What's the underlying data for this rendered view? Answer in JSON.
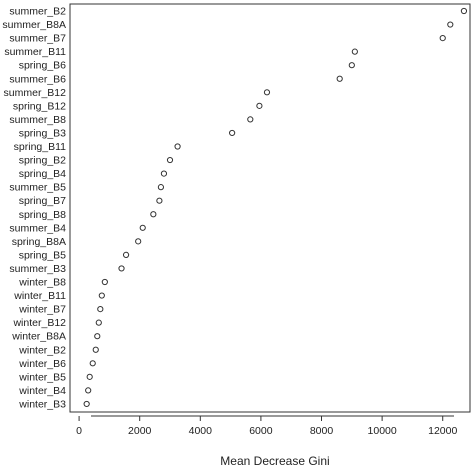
{
  "chart_data": {
    "type": "scatter",
    "title": "",
    "xlabel": "Mean Decrease Gini",
    "ylabel": "",
    "xlim": [
      -300,
      12900
    ],
    "xticks": [
      0,
      2000,
      4000,
      6000,
      8000,
      10000,
      12000
    ],
    "tick_labels": [
      "0",
      "2000",
      "4000",
      "6000",
      "8000",
      "10000",
      "12000"
    ],
    "marker": "open-circle",
    "grid": false,
    "points": [
      {
        "label": "summer_B2",
        "value": 12700
      },
      {
        "label": "summer_B8A",
        "value": 12250
      },
      {
        "label": "summer_B7",
        "value": 12000
      },
      {
        "label": "summer_B11",
        "value": 9100
      },
      {
        "label": "spring_B6",
        "value": 9000
      },
      {
        "label": "summer_B6",
        "value": 8600
      },
      {
        "label": "summer_B12",
        "value": 6200
      },
      {
        "label": "spring_B12",
        "value": 5950
      },
      {
        "label": "summer_B8",
        "value": 5650
      },
      {
        "label": "spring_B3",
        "value": 5050
      },
      {
        "label": "spring_B11",
        "value": 3250
      },
      {
        "label": "spring_B2",
        "value": 3000
      },
      {
        "label": "spring_B4",
        "value": 2800
      },
      {
        "label": "summer_B5",
        "value": 2700
      },
      {
        "label": "spring_B7",
        "value": 2650
      },
      {
        "label": "spring_B8",
        "value": 2450
      },
      {
        "label": "summer_B4",
        "value": 2100
      },
      {
        "label": "spring_B8A",
        "value": 1950
      },
      {
        "label": "spring_B5",
        "value": 1550
      },
      {
        "label": "summer_B3",
        "value": 1400
      },
      {
        "label": "winter_B8",
        "value": 850
      },
      {
        "label": "winter_B11",
        "value": 750
      },
      {
        "label": "winter_B7",
        "value": 700
      },
      {
        "label": "winter_B12",
        "value": 650
      },
      {
        "label": "winter_B8A",
        "value": 600
      },
      {
        "label": "winter_B2",
        "value": 550
      },
      {
        "label": "winter_B6",
        "value": 450
      },
      {
        "label": "winter_B5",
        "value": 350
      },
      {
        "label": "winter_B4",
        "value": 300
      },
      {
        "label": "winter_B3",
        "value": 250
      }
    ]
  }
}
